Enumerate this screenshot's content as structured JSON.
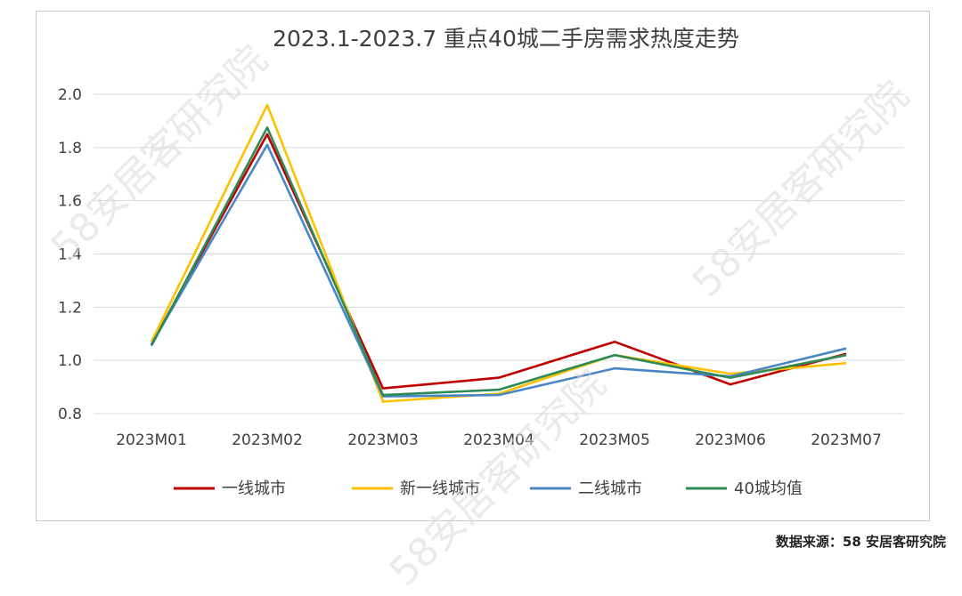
{
  "source_note": "数据来源：58 安居客研究院",
  "watermark_text": "58安居客研究院",
  "chart_data": {
    "type": "line",
    "title": "2023.1-2023.7 重点40城二手房需求热度走势",
    "xlabel": "",
    "ylabel": "",
    "categories": [
      "2023M01",
      "2023M02",
      "2023M03",
      "2023M04",
      "2023M05",
      "2023M06",
      "2023M07"
    ],
    "ylim": [
      0.8,
      2.0
    ],
    "yticks": [
      "0.8",
      "1.0",
      "1.2",
      "1.4",
      "1.6",
      "1.8",
      "2.0"
    ],
    "grid": true,
    "legend_position": "bottom",
    "series": [
      {
        "name": "一线城市",
        "color": "#c00000",
        "values": [
          1.06,
          1.85,
          0.895,
          0.935,
          1.07,
          0.91,
          1.025
        ]
      },
      {
        "name": "新一线城市",
        "color": "#ffc000",
        "values": [
          1.07,
          1.96,
          0.845,
          0.875,
          1.02,
          0.95,
          0.99
        ]
      },
      {
        "name": "二线城市",
        "color": "#4a86c5",
        "values": [
          1.06,
          1.81,
          0.865,
          0.87,
          0.97,
          0.94,
          1.045
        ]
      },
      {
        "name": "40城均值",
        "color": "#2e8b57",
        "values": [
          1.055,
          1.875,
          0.87,
          0.89,
          1.02,
          0.935,
          1.02
        ]
      }
    ]
  }
}
